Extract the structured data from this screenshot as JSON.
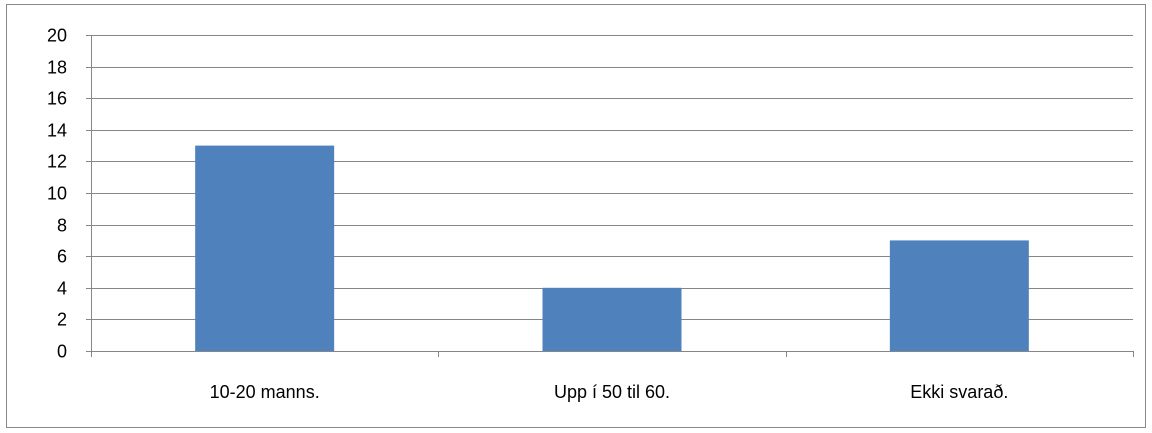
{
  "chart_data": {
    "type": "bar",
    "categories": [
      "10-20 manns.",
      "Upp í 50 til 60.",
      "Ekki svarað."
    ],
    "values": [
      13,
      4,
      7
    ],
    "ylim": [
      0,
      20
    ],
    "yticks": [
      0,
      2,
      4,
      6,
      8,
      10,
      12,
      14,
      16,
      18,
      20
    ],
    "grid": true,
    "legend": "none",
    "colors": {
      "bar": "#4f81bd",
      "grid": "#868686",
      "axis": "#868686",
      "frame": "#898989"
    }
  }
}
